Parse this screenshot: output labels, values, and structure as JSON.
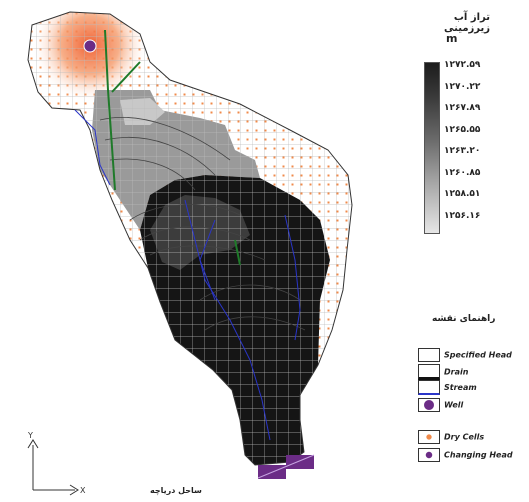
{
  "map": {
    "colorbar_title": "تراز آب زیرزمینی",
    "unit": "m",
    "colorbar_ticks": [
      "۱۲۷۲.۵۹",
      "۱۲۷۰.۲۲",
      "۱۲۶۷.۸۹",
      "۱۲۶۵.۵۵",
      "۱۲۶۳.۲۰",
      "۱۲۶۰.۸۵",
      "۱۲۵۸.۵۱",
      "۱۲۵۶.۱۶"
    ],
    "legend_title": "راهنمای نقشه",
    "legend": [
      {
        "label": "Specified Head",
        "kind": "specified"
      },
      {
        "label": "Drain",
        "kind": "drain"
      },
      {
        "label": "Stream",
        "kind": "stream"
      },
      {
        "label": "Well",
        "kind": "well"
      },
      {
        "label": "Dry Cells",
        "kind": "dry"
      },
      {
        "label": "Changing Head",
        "kind": "changing"
      }
    ],
    "coast_label": "ساحل دریاچه",
    "colors": {
      "dry_cell": "#f08a4a",
      "stream": "#2a35c8",
      "drain": "#1f7a2a",
      "changing_head": "#6b2c86",
      "well": "#6b2c86",
      "dark_cells": "#151515"
    }
  }
}
